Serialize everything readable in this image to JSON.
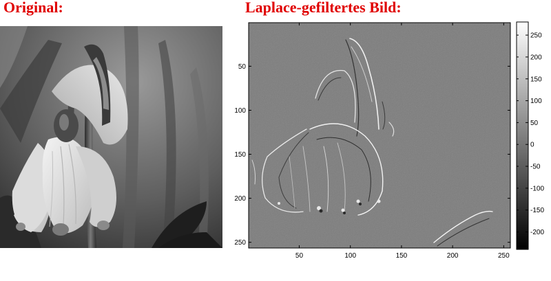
{
  "titles": {
    "original": "Original:",
    "laplace": "Laplace-gefiltertes Bild:"
  },
  "colors": {
    "title": "#e00000",
    "laplace_background": "#7d7d7d"
  },
  "axes": {
    "x_ticks": [
      "50",
      "100",
      "150",
      "200",
      "250"
    ],
    "y_ticks": [
      "50",
      "100",
      "150",
      "200",
      "250"
    ],
    "x_range": [
      1,
      256
    ],
    "y_range": [
      1,
      256
    ]
  },
  "colorbar": {
    "ticks": [
      "250",
      "200",
      "150",
      "100",
      "50",
      "0",
      "-50",
      "-100",
      "-150",
      "-200"
    ],
    "range": [
      -240,
      280
    ],
    "colormap": "gray"
  }
}
